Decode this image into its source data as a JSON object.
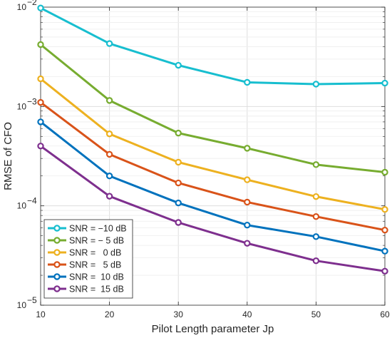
{
  "chart_data": {
    "type": "line",
    "xlabel": "Pilot Length parameter Jp",
    "ylabel": "RMSE of CFO",
    "x": [
      10,
      20,
      30,
      40,
      50,
      60
    ],
    "xlim": [
      10,
      60
    ],
    "xticks": [
      10,
      20,
      30,
      40,
      50,
      60
    ],
    "yscale": "log",
    "ylim": [
      1e-05,
      0.01
    ],
    "yticks": [
      {
        "value": 1e-05,
        "base": "10",
        "exp": "−5"
      },
      {
        "value": 0.0001,
        "base": "10",
        "exp": "−4"
      },
      {
        "value": 0.001,
        "base": "10",
        "exp": "−3"
      },
      {
        "value": 0.01,
        "base": "10",
        "exp": "−2"
      }
    ],
    "grid": true,
    "legend_position": "bottom-left",
    "series": [
      {
        "name": "SNR = −10 dB",
        "color": "#17BECF",
        "values": [
          0.0098,
          0.0043,
          0.0026,
          0.00175,
          0.00168,
          0.00172
        ]
      },
      {
        "name": "SNR = − 5 dB",
        "color": "#77AC30",
        "values": [
          0.0042,
          0.00115,
          0.00054,
          0.00038,
          0.00026,
          0.000218
        ]
      },
      {
        "name": "SNR =   0 dB",
        "color": "#EDB120",
        "values": [
          0.0019,
          0.00053,
          0.000275,
          0.000183,
          0.000124,
          9.2e-05
        ]
      },
      {
        "name": "SNR =   5 dB",
        "color": "#D95319",
        "values": [
          0.0011,
          0.00033,
          0.00017,
          0.000109,
          7.8e-05,
          5.7e-05
        ]
      },
      {
        "name": "SNR =  10 dB",
        "color": "#0072BD",
        "values": [
          0.0007,
          0.0002,
          0.000107,
          6.4e-05,
          4.9e-05,
          3.5e-05
        ]
      },
      {
        "name": "SNR =  15 dB",
        "color": "#7E2F8E",
        "values": [
          0.0004,
          0.000125,
          6.8e-05,
          4.2e-05,
          2.8e-05,
          2.2e-05
        ]
      }
    ]
  }
}
